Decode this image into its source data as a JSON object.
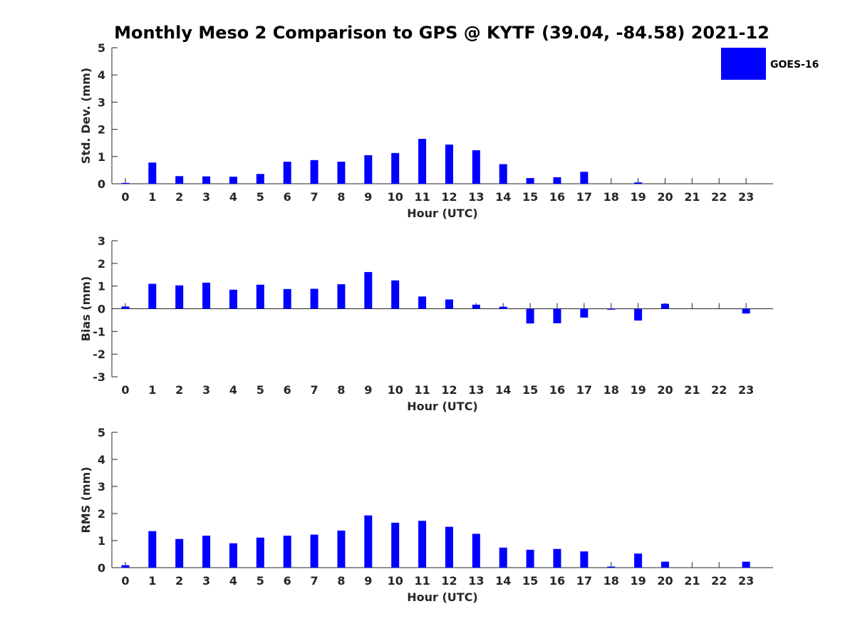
{
  "chart_data": {
    "title": "Monthly Meso 2 Comparison to GPS @ KYTF (39.04, -84.58) 2021-12",
    "type": "bar",
    "legend": {
      "label": "GOES-16",
      "color": "#0000ff",
      "placement": "top-right"
    },
    "bar_color": "#0000ff",
    "categories": [
      "0",
      "1",
      "2",
      "3",
      "4",
      "5",
      "6",
      "7",
      "8",
      "9",
      "10",
      "11",
      "12",
      "13",
      "14",
      "15",
      "16",
      "17",
      "18",
      "19",
      "20",
      "21",
      "22",
      "23"
    ],
    "panels": [
      {
        "ylabel": "Std. Dev. (mm)",
        "xlabel": "Hour (UTC)",
        "ylim": [
          0,
          5
        ],
        "yticks": [
          "0",
          "1",
          "2",
          "3",
          "4",
          "5"
        ],
        "values": [
          0.03,
          0.78,
          0.28,
          0.27,
          0.26,
          0.36,
          0.81,
          0.87,
          0.81,
          1.05,
          1.13,
          1.65,
          1.44,
          1.23,
          0.72,
          0.21,
          0.24,
          0.44,
          null,
          0.05,
          null,
          null,
          null,
          null
        ]
      },
      {
        "ylabel": "Bias (mm)",
        "xlabel": "Hour (UTC)",
        "ylim": [
          -3,
          3
        ],
        "yticks": [
          "-3",
          "-2",
          "-1",
          "0",
          "1",
          "2",
          "3"
        ],
        "values": [
          0.1,
          1.1,
          1.03,
          1.15,
          0.84,
          1.06,
          0.87,
          0.88,
          1.08,
          1.62,
          1.25,
          0.54,
          0.41,
          0.18,
          0.09,
          -0.65,
          -0.64,
          -0.39,
          -0.04,
          -0.52,
          0.22,
          null,
          null,
          -0.21
        ]
      },
      {
        "ylabel": "RMS (mm)",
        "xlabel": "Hour (UTC)",
        "ylim": [
          0,
          5
        ],
        "yticks": [
          "0",
          "1",
          "2",
          "3",
          "4",
          "5"
        ],
        "values": [
          0.09,
          1.35,
          1.06,
          1.18,
          0.9,
          1.11,
          1.18,
          1.22,
          1.37,
          1.93,
          1.66,
          1.73,
          1.51,
          1.25,
          0.74,
          0.66,
          0.69,
          0.6,
          0.04,
          0.52,
          0.22,
          null,
          null,
          0.22
        ]
      }
    ]
  }
}
